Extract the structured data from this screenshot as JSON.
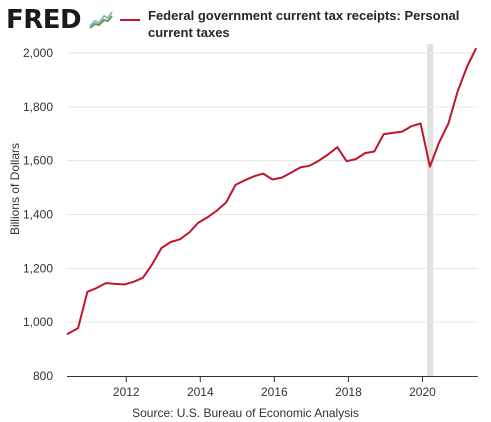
{
  "header": {
    "logo_text": "FRED",
    "logo_icon": "chart-line-icon"
  },
  "colors": {
    "series": "#c1152c",
    "recession": "#e1e1e1",
    "grid": "#e6e6e6",
    "axis": "#333333"
  },
  "chart_data": {
    "type": "line",
    "title": "",
    "ylabel": "Billions of Dollars",
    "xlabel": "",
    "source": "Source: U.S. Bureau of Economic Analysis",
    "ylim": [
      800,
      2000
    ],
    "xlim": [
      2010.4,
      2021.5
    ],
    "yticks": [
      {
        "value": 800,
        "label": "800"
      },
      {
        "value": 1000,
        "label": "1,000"
      },
      {
        "value": 1200,
        "label": "1,200"
      },
      {
        "value": 1400,
        "label": "1,400"
      },
      {
        "value": 1600,
        "label": "1,600"
      },
      {
        "value": 1800,
        "label": "1,800"
      },
      {
        "value": 2000,
        "label": "2,000"
      }
    ],
    "xticks": [
      {
        "value": 2012,
        "label": "2012"
      },
      {
        "value": 2014,
        "label": "2014"
      },
      {
        "value": 2016,
        "label": "2016"
      },
      {
        "value": 2018,
        "label": "2018"
      },
      {
        "value": 2020,
        "label": "2020"
      }
    ],
    "grid": "horizontal",
    "legend": "top",
    "recession": {
      "start": 2020.125,
      "end": 2020.29
    },
    "series": [
      {
        "name": "Federal government current tax receipts: Personal current taxes",
        "points": [
          [
            2010.4,
            955
          ],
          [
            2010.7,
            978
          ],
          [
            2010.95,
            1113
          ],
          [
            2011.2,
            1127
          ],
          [
            2011.45,
            1145
          ],
          [
            2011.7,
            1142
          ],
          [
            2011.95,
            1140
          ],
          [
            2012.2,
            1150
          ],
          [
            2012.45,
            1165
          ],
          [
            2012.7,
            1215
          ],
          [
            2012.95,
            1275
          ],
          [
            2013.2,
            1298
          ],
          [
            2013.45,
            1308
          ],
          [
            2013.7,
            1333
          ],
          [
            2013.95,
            1370
          ],
          [
            2014.2,
            1390
          ],
          [
            2014.45,
            1415
          ],
          [
            2014.7,
            1445
          ],
          [
            2014.95,
            1510
          ],
          [
            2015.2,
            1527
          ],
          [
            2015.45,
            1542
          ],
          [
            2015.7,
            1552
          ],
          [
            2015.95,
            1530
          ],
          [
            2016.2,
            1537
          ],
          [
            2016.45,
            1555
          ],
          [
            2016.7,
            1575
          ],
          [
            2016.95,
            1581
          ],
          [
            2017.2,
            1600
          ],
          [
            2017.45,
            1623
          ],
          [
            2017.7,
            1650
          ],
          [
            2017.95,
            1598
          ],
          [
            2018.2,
            1606
          ],
          [
            2018.45,
            1628
          ],
          [
            2018.7,
            1634
          ],
          [
            2018.95,
            1698
          ],
          [
            2019.2,
            1703
          ],
          [
            2019.45,
            1708
          ],
          [
            2019.7,
            1728
          ],
          [
            2019.95,
            1738
          ],
          [
            2020.2,
            1578
          ],
          [
            2020.45,
            1668
          ],
          [
            2020.7,
            1738
          ],
          [
            2020.95,
            1857
          ],
          [
            2021.2,
            1948
          ],
          [
            2021.45,
            2018
          ]
        ]
      }
    ]
  }
}
